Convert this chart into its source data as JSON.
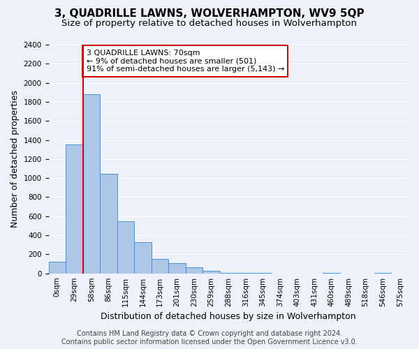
{
  "title": "3, QUADRILLE LAWNS, WOLVERHAMPTON, WV9 5QP",
  "subtitle": "Size of property relative to detached houses in Wolverhampton",
  "xlabel": "Distribution of detached houses by size in Wolverhampton",
  "ylabel": "Number of detached properties",
  "bar_color": "#aec6e8",
  "bar_edge_color": "#4a90d9",
  "bin_labels": [
    "0sqm",
    "29sqm",
    "58sqm",
    "86sqm",
    "115sqm",
    "144sqm",
    "173sqm",
    "201sqm",
    "230sqm",
    "259sqm",
    "288sqm",
    "316sqm",
    "345sqm",
    "374sqm",
    "403sqm",
    "431sqm",
    "460sqm",
    "489sqm",
    "518sqm",
    "546sqm",
    "575sqm"
  ],
  "bar_heights": [
    125,
    1350,
    1880,
    1045,
    550,
    330,
    155,
    110,
    60,
    30,
    5,
    5,
    5,
    0,
    0,
    0,
    5,
    0,
    0,
    5,
    0
  ],
  "ylim": [
    0,
    2400
  ],
  "yticks": [
    0,
    200,
    400,
    600,
    800,
    1000,
    1200,
    1400,
    1600,
    1800,
    2000,
    2200,
    2400
  ],
  "red_line_x": 2,
  "annotation_text": "3 QUADRILLE LAWNS: 70sqm\n← 9% of detached houses are smaller (501)\n91% of semi-detached houses are larger (5,143) →",
  "annotation_box_color": "#ffffff",
  "annotation_box_edge": "#cc0000",
  "footer_line1": "Contains HM Land Registry data © Crown copyright and database right 2024.",
  "footer_line2": "Contains public sector information licensed under the Open Government Licence v3.0.",
  "background_color": "#eef2f8",
  "grid_color": "#ffffff",
  "title_fontsize": 11,
  "subtitle_fontsize": 9.5,
  "xlabel_fontsize": 9,
  "ylabel_fontsize": 9,
  "tick_fontsize": 7.5,
  "footer_fontsize": 7
}
